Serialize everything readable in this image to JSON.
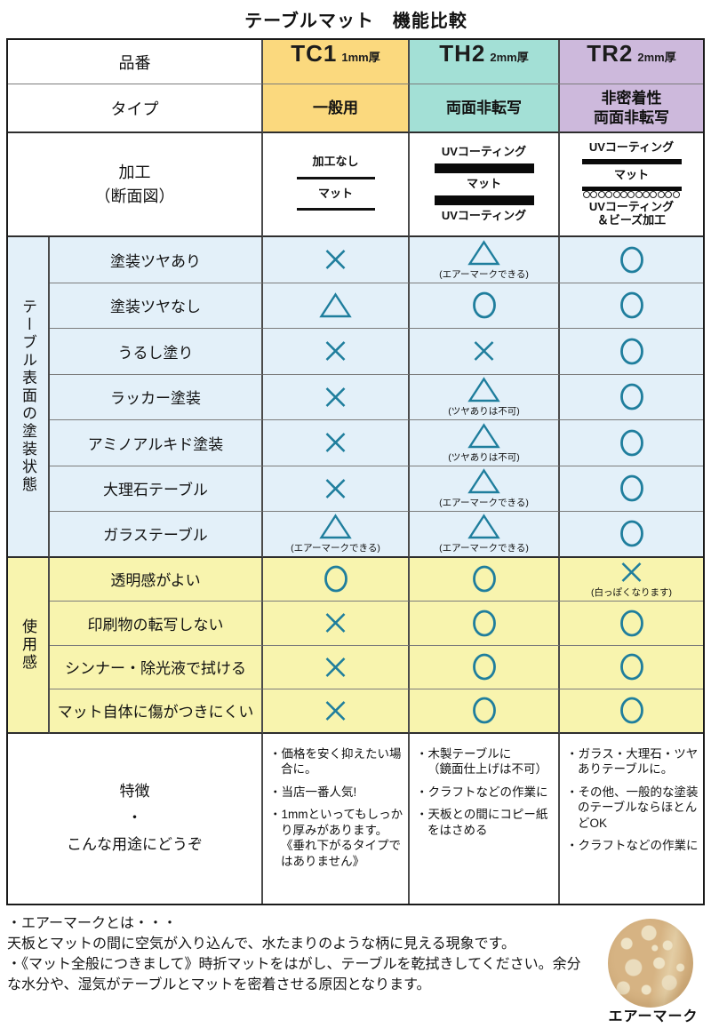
{
  "title": "テーブルマット　機能比較",
  "colors": {
    "symbol": "#1f7e9d",
    "tc1_header": "#fbd97e",
    "th2_header": "#a3e0d6",
    "tr2_header": "#cdb9dc",
    "surface_row_bg": "#e3f0f9",
    "usage_row_bg": "#f8f4ae"
  },
  "header": {
    "row_label": "品番",
    "type_label": "タイプ",
    "process_label": "加工\n（断面図）",
    "products": [
      {
        "code": "TC1",
        "thickness": "1mm厚",
        "type": "一般用",
        "color": "#fbd97e"
      },
      {
        "code": "TH2",
        "thickness": "2mm厚",
        "type": "両面非転写",
        "color": "#a3e0d6"
      },
      {
        "code": "TR2",
        "thickness": "2mm厚",
        "type": "非密着性\n両面非転写",
        "color": "#cdb9dc"
      }
    ]
  },
  "diagrams": [
    {
      "layers": [
        {
          "t": "text",
          "v": "加工なし"
        },
        {
          "t": "thin"
        },
        {
          "t": "text",
          "v": "マット"
        },
        {
          "t": "thin"
        }
      ]
    },
    {
      "layers": [
        {
          "t": "text",
          "v": "UVコーティング"
        },
        {
          "t": "bar"
        },
        {
          "t": "text",
          "v": "マット"
        },
        {
          "t": "bar"
        },
        {
          "t": "text",
          "v": "UVコーティング"
        }
      ]
    },
    {
      "layers": [
        {
          "t": "text",
          "v": "UVコーティング"
        },
        {
          "t": "bar"
        },
        {
          "t": "text",
          "v": "マット"
        },
        {
          "t": "bar"
        },
        {
          "t": "beads",
          "count": 13
        },
        {
          "t": "text",
          "v": "UVコーティング\n＆ビーズ加工"
        }
      ]
    }
  ],
  "surface_section": {
    "sidebar": "テーブル表面の塗装状態",
    "bg": "#e3f0f9",
    "rows": [
      {
        "label": "塗装ツヤあり",
        "cells": [
          {
            "mark": "cross"
          },
          {
            "mark": "triangle",
            "note": "(エアーマークできる)"
          },
          {
            "mark": "circle"
          }
        ]
      },
      {
        "label": "塗装ツヤなし",
        "cells": [
          {
            "mark": "triangle"
          },
          {
            "mark": "circle"
          },
          {
            "mark": "circle"
          }
        ]
      },
      {
        "label": "うるし塗り",
        "cells": [
          {
            "mark": "cross"
          },
          {
            "mark": "cross"
          },
          {
            "mark": "circle"
          }
        ]
      },
      {
        "label": "ラッカー塗装",
        "cells": [
          {
            "mark": "cross"
          },
          {
            "mark": "triangle",
            "note": "(ツヤありは不可)"
          },
          {
            "mark": "circle"
          }
        ]
      },
      {
        "label": "アミノアルキド塗装",
        "cells": [
          {
            "mark": "cross"
          },
          {
            "mark": "triangle",
            "note": "(ツヤありは不可)"
          },
          {
            "mark": "circle"
          }
        ]
      },
      {
        "label": "大理石テーブル",
        "cells": [
          {
            "mark": "cross"
          },
          {
            "mark": "triangle",
            "note": "(エアーマークできる)"
          },
          {
            "mark": "circle"
          }
        ]
      },
      {
        "label": "ガラステーブル",
        "cells": [
          {
            "mark": "triangle",
            "note": "(エアーマークできる)"
          },
          {
            "mark": "triangle",
            "note": "(エアーマークできる)"
          },
          {
            "mark": "circle"
          }
        ]
      }
    ]
  },
  "usage_section": {
    "sidebar": "使用感",
    "bg": "#f8f4ae",
    "rows": [
      {
        "label": "透明感がよい",
        "cells": [
          {
            "mark": "circle"
          },
          {
            "mark": "circle"
          },
          {
            "mark": "cross",
            "note": "(白っぽくなります)"
          }
        ]
      },
      {
        "label": "印刷物の転写しない",
        "cells": [
          {
            "mark": "cross"
          },
          {
            "mark": "circle"
          },
          {
            "mark": "circle"
          }
        ]
      },
      {
        "label": "シンナー・除光液で拭ける",
        "cells": [
          {
            "mark": "cross"
          },
          {
            "mark": "circle"
          },
          {
            "mark": "circle"
          }
        ]
      },
      {
        "label": "マット自体に傷がつきにくい",
        "cells": [
          {
            "mark": "cross"
          },
          {
            "mark": "circle"
          },
          {
            "mark": "circle"
          }
        ]
      }
    ]
  },
  "features": {
    "label": "特徴\n・\nこんな用途にどうぞ",
    "columns": [
      {
        "items": [
          "・価格を安く抑えたい場合に。",
          "・当店一番人気!",
          "・1mmといってもしっかり厚みがあります。《垂れ下がるタイプではありません》"
        ]
      },
      {
        "items": [
          "・木製テーブルに\n（鏡面仕上げは不可）",
          "・クラフトなどの作業に",
          "・天板との間にコピー紙をはさめる"
        ]
      },
      {
        "items": [
          "・ガラス・大理石・ツヤありテーブルに。",
          "・その他、一般的な塗装のテーブルならほとんどOK",
          "・クラフトなどの作業に"
        ]
      }
    ]
  },
  "footer": {
    "notes": [
      "・エアーマークとは・・・",
      "天板とマットの間に空気が入り込んで、水たまりのような柄に見える現象です。",
      "・《マット全般につきまして》時折マットをはがし、テーブルを乾拭きしてください。余分な水分や、湿気がテーブルとマットを密着させる原因となります。"
    ],
    "airmark_label": "エアーマーク"
  }
}
